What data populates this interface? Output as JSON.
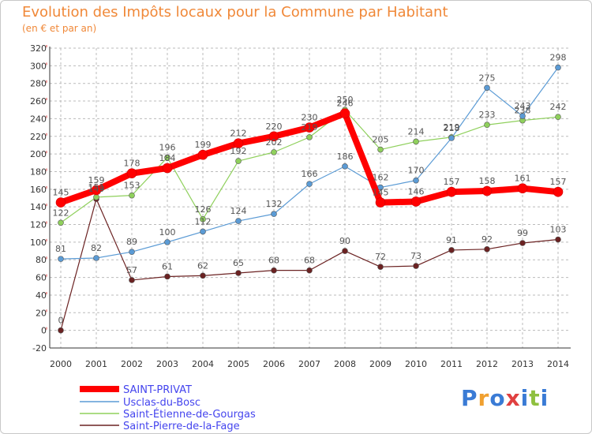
{
  "header": {
    "title": "Evolution des Impôts locaux pour la Commune par Habitant",
    "subtitle": "(en € et par an)"
  },
  "logo": {
    "text": "Proxiti",
    "colors": [
      "#3a7bd5",
      "#f0a030",
      "#3a7bd5",
      "#e04040",
      "#3a7bd5",
      "#8fc040",
      "#3a7bd5"
    ]
  },
  "chart_data": {
    "type": "line",
    "title": "Evolution des Impôts locaux pour la Commune par Habitant",
    "subtitle": "(en € et par an)",
    "categories": [
      "2000",
      "2001",
      "2002",
      "2003",
      "2004",
      "2005",
      "2006",
      "2007",
      "2008",
      "2009",
      "2010",
      "2011",
      "2012",
      "2013",
      "2014"
    ],
    "ylim": [
      -20,
      320
    ],
    "y_ticks": [
      -20,
      0,
      20,
      40,
      60,
      80,
      100,
      120,
      140,
      160,
      180,
      200,
      220,
      240,
      260,
      280,
      300,
      320
    ],
    "grid": true,
    "legend_position": "bottom-left",
    "series": [
      {
        "name": "SAINT-PRIVAT",
        "color": "#ff0000",
        "values": [
          145,
          159,
          178,
          184,
          199,
          212,
          220,
          230,
          246,
          145,
          146,
          157,
          158,
          161,
          157
        ],
        "labels": [
          "145",
          "159",
          "178",
          "184",
          "199",
          "212",
          "220",
          "230",
          "246",
          "145",
          "146",
          "157",
          "158",
          "161",
          "157"
        ]
      },
      {
        "name": "Usclas-du-Bosc",
        "color": "#5b9bd5",
        "values": [
          81,
          82,
          89,
          100,
          112,
          124,
          132,
          166,
          186,
          162,
          170,
          218,
          275,
          243,
          298
        ],
        "labels": [
          "81",
          "82",
          "89",
          "100",
          "112",
          "124",
          "132",
          "166",
          "186",
          "162",
          "170",
          "218",
          "275",
          "243",
          "298"
        ]
      },
      {
        "name": "Saint-Étienne-de-Gourgas",
        "color": "#8fd05c",
        "values": [
          122,
          151,
          153,
          196,
          126,
          192,
          202,
          219,
          250,
          205,
          214,
          219,
          233,
          238,
          242
        ],
        "labels": [
          "122",
          "151",
          "153",
          "196",
          "126",
          "192",
          "202",
          "219",
          "250",
          "205",
          "214",
          "219",
          "233",
          "238",
          "242"
        ]
      },
      {
        "name": "Saint-Pierre-de-la-Fage",
        "color": "#6b2222",
        "values": [
          0,
          149,
          57,
          61,
          62,
          65,
          68,
          68,
          90,
          72,
          73,
          91,
          92,
          99,
          103
        ],
        "labels": [
          "0",
          "149",
          "57",
          "61",
          "62",
          "65",
          "68",
          "68",
          "90",
          "72",
          "73",
          "91",
          "92",
          "99",
          "103"
        ]
      }
    ]
  }
}
